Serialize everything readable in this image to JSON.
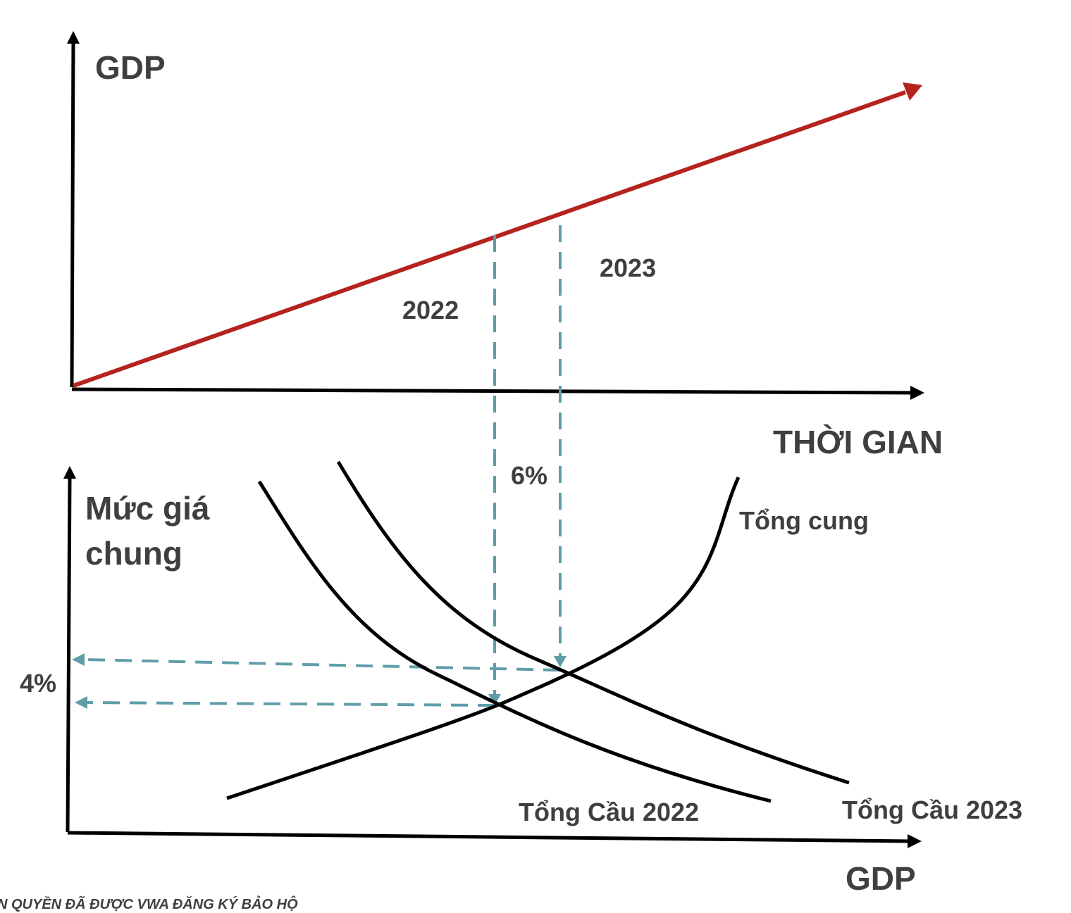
{
  "top_chart": {
    "y_axis_label": "GDP",
    "x_axis_label": "THỜI GIAN",
    "year_2022_label": "2022",
    "year_2023_label": "2023",
    "trend_color": "#b5231f"
  },
  "bottom_chart": {
    "y_axis_label_line1": "Mức giá",
    "y_axis_label_line2": "chung",
    "x_axis_label": "GDP",
    "supply_label": "Tổng cung",
    "demand_2022_label": "Tổng Cầu 2022",
    "demand_2023_label": "Tổng Cầu 2023",
    "gdp_growth_label": "6%",
    "price_change_label": "4%",
    "guide_color": "#5f9ea8"
  },
  "footer_note": "N QUYỀN ĐÃ ĐƯỢC VWA ĐĂNG KÝ BẢO HỘ"
}
